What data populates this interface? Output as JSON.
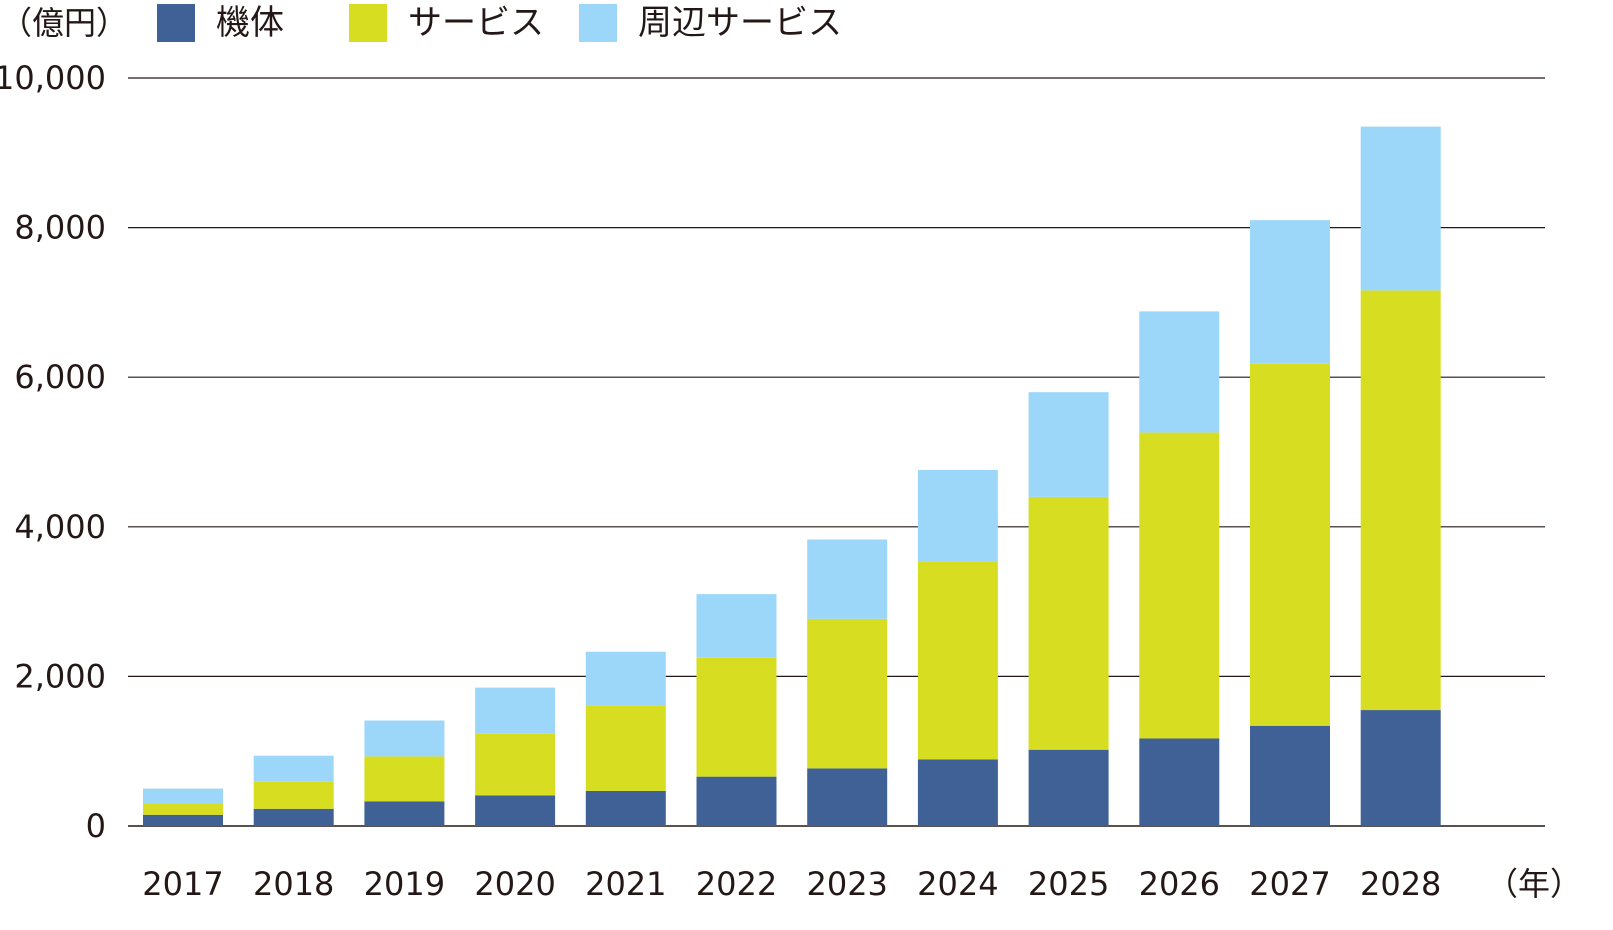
{
  "chart_data": {
    "type": "bar",
    "stacked": true,
    "y_unit_label": "（億円）",
    "x_unit_label": "（年）",
    "categories": [
      "2017",
      "2018",
      "2019",
      "2020",
      "2021",
      "2022",
      "2023",
      "2024",
      "2025",
      "2026",
      "2027",
      "2028"
    ],
    "series": [
      {
        "name": "機体",
        "color": "#3f6196",
        "values": [
          150,
          230,
          330,
          410,
          470,
          660,
          770,
          890,
          1020,
          1170,
          1340,
          1550
        ]
      },
      {
        "name": "サービス",
        "color": "#d7de21",
        "values": [
          150,
          360,
          600,
          830,
          1140,
          1590,
          2000,
          2650,
          3380,
          4090,
          4840,
          5610
        ]
      },
      {
        "name": "周辺サービス",
        "color": "#9cd7f9",
        "values": [
          200,
          350,
          480,
          610,
          720,
          850,
          1060,
          1220,
          1400,
          1620,
          1920,
          2190
        ]
      }
    ],
    "y_ticks": [
      "0",
      "2,000",
      "4,000",
      "6,000",
      "8,000",
      "10,000"
    ],
    "y_tick_values": [
      0,
      2000,
      4000,
      6000,
      8000,
      10000
    ],
    "ylim": [
      0,
      10000
    ],
    "grid": true,
    "legend_position": "top-left"
  }
}
